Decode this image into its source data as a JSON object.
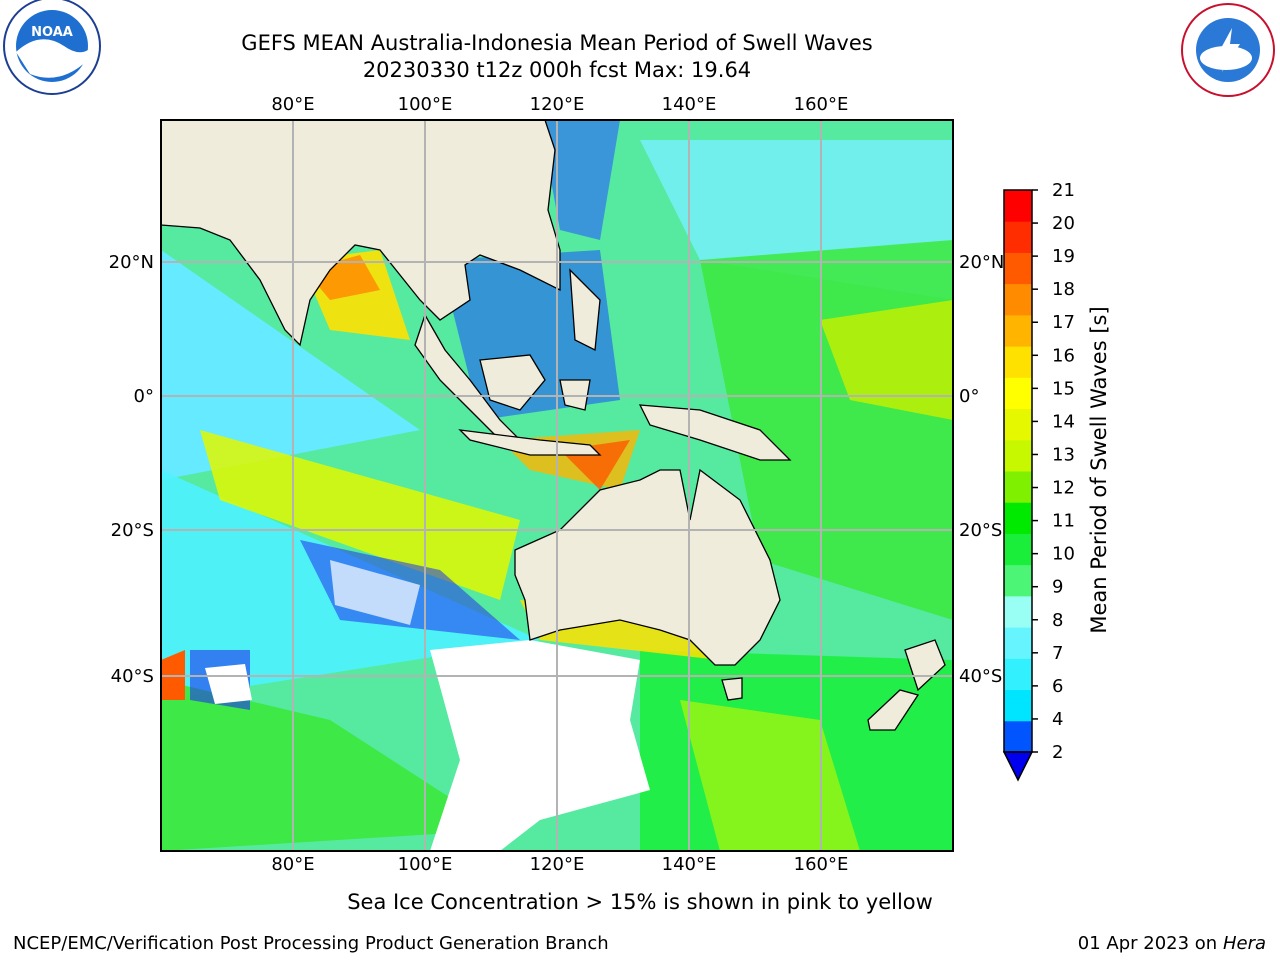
{
  "title": {
    "line1": "GEFS MEAN Australia-Indonesia Mean Period of Swell Waves",
    "line2": "20230330 t12z 000h fcst   Max: 19.64"
  },
  "map": {
    "lon_labels": [
      "80°E",
      "100°E",
      "120°E",
      "140°E",
      "160°E"
    ],
    "lat_labels": [
      "20°N",
      "0°",
      "20°S",
      "40°S"
    ],
    "land_color": "#efecdc",
    "grid_color": "#b3b3b3",
    "logos": [
      "noaa-logo",
      "national-weather-service-logo"
    ]
  },
  "colorbar": {
    "label": "Mean Period of Swell Waves [s]",
    "ticks": [
      "2",
      "4",
      "6",
      "7",
      "8",
      "9",
      "10",
      "11",
      "12",
      "13",
      "14",
      "15",
      "16",
      "17",
      "18",
      "19",
      "20",
      "21"
    ],
    "colors": [
      "#0055ff",
      "#00e5ff",
      "#33f0ff",
      "#66f5ff",
      "#99fff4",
      "#4df576",
      "#1aee3a",
      "#00ea00",
      "#7ff000",
      "#c8f800",
      "#e6f800",
      "#ffff00",
      "#ffe100",
      "#ffb400",
      "#ff8c00",
      "#ff5a00",
      "#ff2d00",
      "#ff0000"
    ],
    "under_color": "#0000ee"
  },
  "footer": {
    "ice_note": "Sea Ice Concentration > 15% is shown in pink to yellow",
    "credit": "NCEP/EMC/Verification Post Processing Product Generation Branch",
    "date": "01 Apr 2023 on",
    "host": "Hera"
  }
}
